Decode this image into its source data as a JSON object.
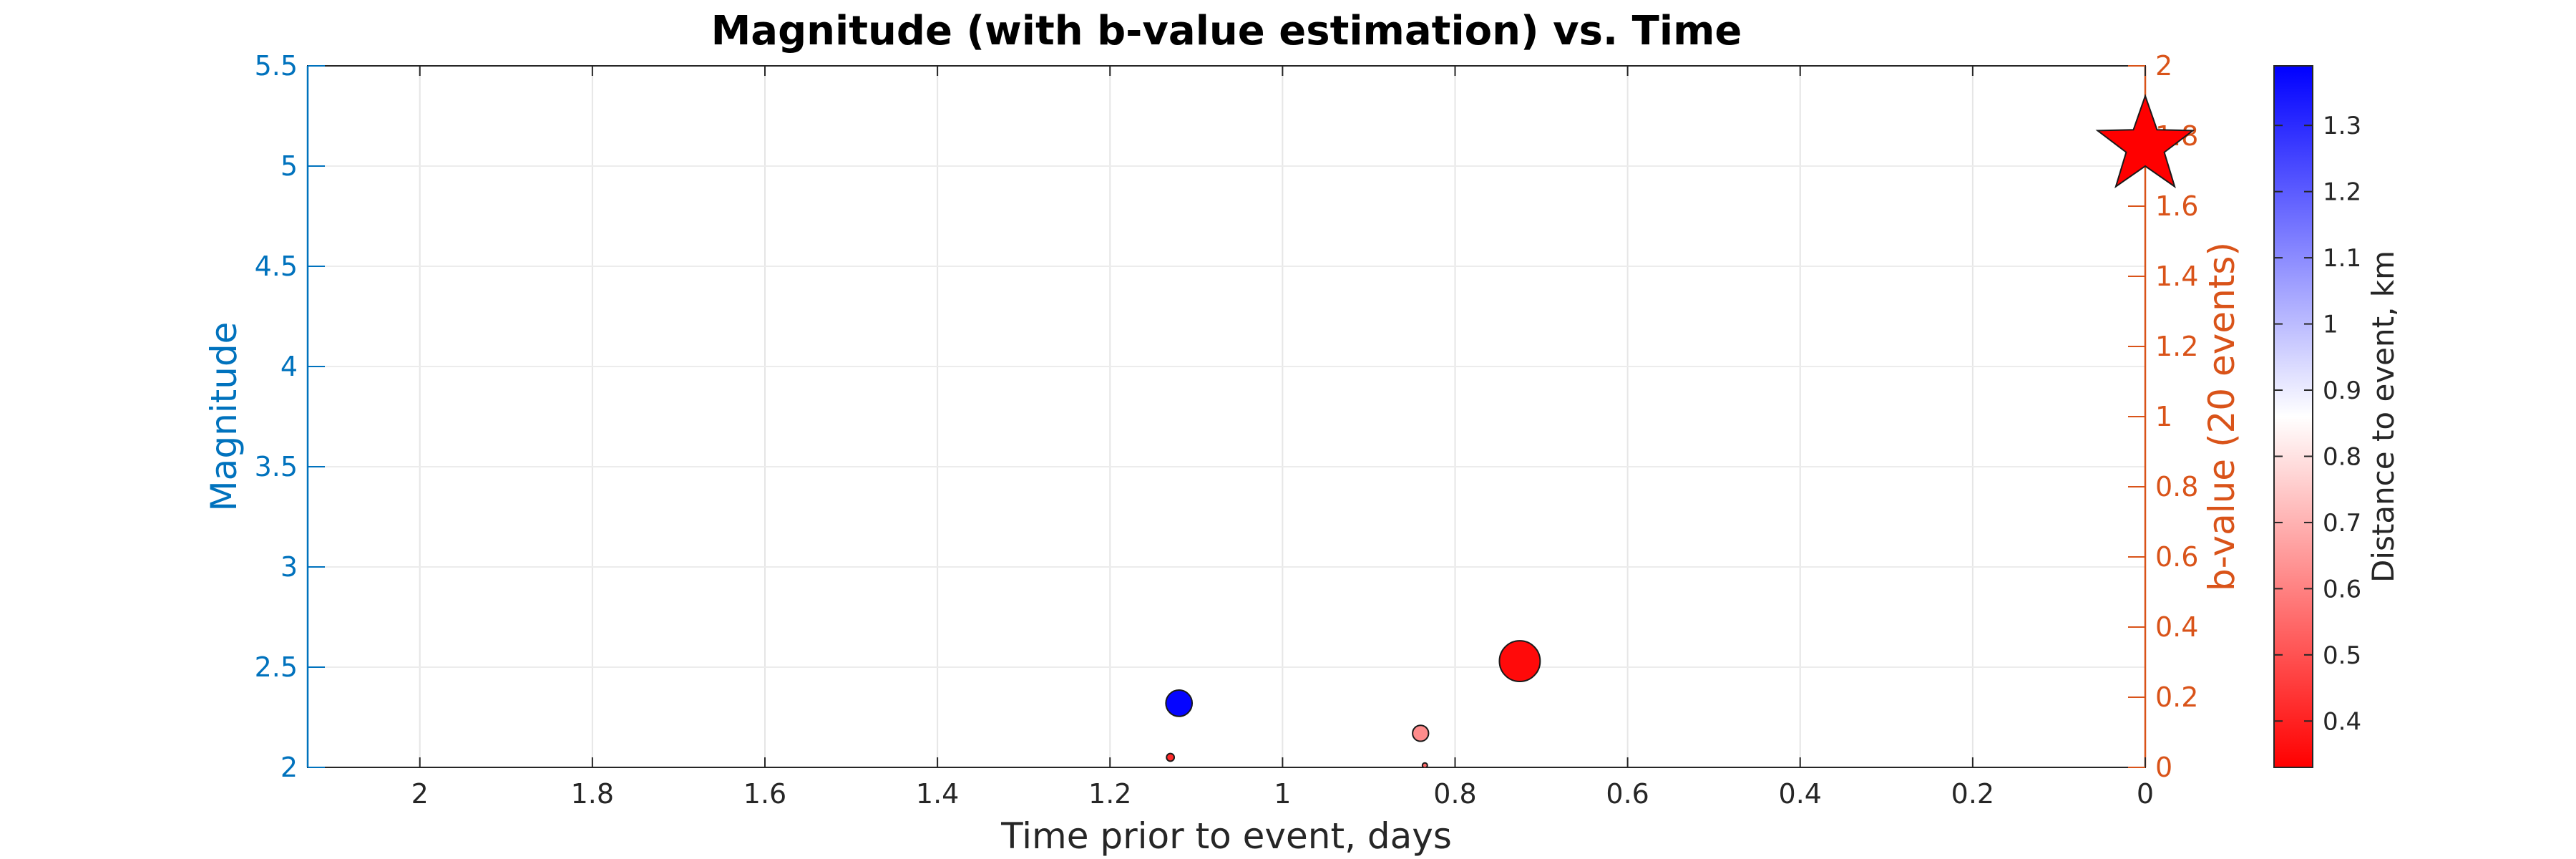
{
  "chart_data": {
    "type": "scatter",
    "title": "Magnitude (with b-value estimation) vs. Time",
    "xlabel": "Time prior to event, days",
    "ylabel_left": "Magnitude",
    "ylabel_right": "b-value (20 events)",
    "colorbar_label": "Distance to event, km",
    "x_reversed": true,
    "xlim": [
      0,
      2.13
    ],
    "ylim_left": [
      2,
      5.5
    ],
    "ylim_right": [
      0,
      2
    ],
    "clim": [
      0.33,
      1.39
    ],
    "grid": true,
    "x_ticks": [
      2,
      1.8,
      1.6,
      1.4,
      1.2,
      1,
      0.8,
      0.6,
      0.4,
      0.2,
      0
    ],
    "x_tick_labels": [
      "2",
      "1.8",
      "1.6",
      "1.4",
      "1.2",
      "1",
      "0.8",
      "0.6",
      "0.4",
      "0.2",
      "0"
    ],
    "y_left_ticks": [
      2,
      2.5,
      3,
      3.5,
      4,
      4.5,
      5,
      5.5
    ],
    "y_left_tick_labels": [
      "2",
      "2.5",
      "3",
      "3.5",
      "4",
      "4.5",
      "5",
      "5.5"
    ],
    "y_right_ticks": [
      0,
      0.2,
      0.4,
      0.6,
      0.8,
      1,
      1.2,
      1.4,
      1.6,
      1.8,
      2
    ],
    "y_right_tick_labels": [
      "0",
      "0.2",
      "0.4",
      "0.6",
      "0.8",
      "1",
      "1.2",
      "1.4",
      "1.6",
      "1.8",
      "2"
    ],
    "colorbar_ticks": [
      0.4,
      0.5,
      0.6,
      0.7,
      0.8,
      0.9,
      1,
      1.1,
      1.2,
      1.3
    ],
    "colorbar_tick_labels": [
      "0.4",
      "0.5",
      "0.6",
      "0.7",
      "0.8",
      "0.9",
      "1",
      "1.1",
      "1.2",
      "1.3"
    ],
    "points": [
      {
        "x": 1.12,
        "magnitude": 2.32,
        "distance": 1.38
      },
      {
        "x": 1.13,
        "magnitude": 2.05,
        "distance": 0.42
      },
      {
        "x": 0.84,
        "magnitude": 2.17,
        "distance": 0.62
      },
      {
        "x": 0.835,
        "magnitude": 2.01,
        "distance": 0.55
      },
      {
        "x": 0.725,
        "magnitude": 2.53,
        "distance": 0.35
      }
    ],
    "mainshock": {
      "x": 0,
      "magnitude": 5.1,
      "marker": "star",
      "color": "#FF0000"
    }
  }
}
